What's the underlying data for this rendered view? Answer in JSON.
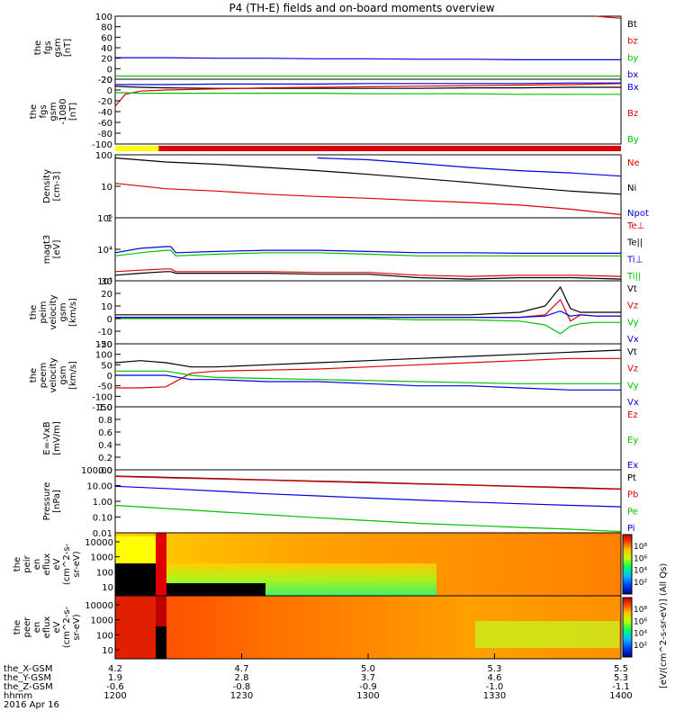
{
  "title": "P4 (TH-E) fields and on-board moments overview",
  "date_label": "2016 Apr 16",
  "colorbar_label": "[eV/(cm^2-s-sr-eV)] (All Qs)",
  "colors": {
    "black": "#000000",
    "red": "#e00000",
    "green": "#00c000",
    "blue": "#0000e0",
    "yellow": "#ffff00"
  },
  "chart_data": [
    {
      "id": "fgs-gsm",
      "type": "line",
      "ylabel": [
        "the",
        "fgs",
        "gsm",
        "[nT]"
      ],
      "ylim": [
        -20,
        100
      ],
      "yticks": [
        "100",
        "80",
        "60",
        "40",
        "20",
        "0",
        "-20"
      ],
      "legend": [
        {
          "text": "Bt",
          "color": "black"
        },
        {
          "text": "bz",
          "color": "red"
        },
        {
          "text": "by",
          "color": "green"
        },
        {
          "text": "bx",
          "color": "blue"
        }
      ],
      "x": [
        0,
        0.1,
        0.2,
        0.3,
        0.4,
        0.5,
        0.6,
        0.7,
        0.8,
        0.9,
        0.95,
        1.0
      ],
      "series": [
        {
          "color": "blue",
          "values": [
            21,
            21,
            20,
            20,
            19,
            19,
            18,
            18,
            17,
            17,
            17,
            17
          ]
        },
        {
          "color": "green",
          "values": [
            -14,
            -14,
            -14,
            -14,
            -14,
            -14,
            -14,
            -14,
            -14,
            -14,
            -14,
            -14
          ]
        },
        {
          "color": "red",
          "values": [
            null,
            null,
            null,
            null,
            null,
            null,
            null,
            null,
            null,
            null,
            100,
            96
          ]
        }
      ]
    },
    {
      "id": "fgs-gsm-1080",
      "type": "line",
      "ylabel": [
        "the",
        "fgs",
        "gsm",
        "-1080",
        "[nT]"
      ],
      "ylim": [
        -100,
        20
      ],
      "yticks": [
        "20",
        "0",
        "-20",
        "-40",
        "-60",
        "-80",
        "-100"
      ],
      "legend": [
        {
          "text": "Bx",
          "color": "blue"
        },
        {
          "text": "Bz",
          "color": "red"
        },
        {
          "text": "By",
          "color": "green"
        }
      ],
      "x": [
        0,
        0.02,
        0.05,
        0.1,
        0.2,
        0.3,
        0.4,
        0.5,
        0.6,
        0.7,
        0.8,
        0.9,
        1.0
      ],
      "series": [
        {
          "color": "black",
          "values": [
            7,
            6,
            5,
            4,
            3,
            3,
            3,
            3,
            3,
            4,
            4,
            5,
            5
          ]
        },
        {
          "color": "red",
          "values": [
            -30,
            -8,
            -2,
            0,
            2,
            4,
            5,
            6,
            7,
            8,
            9,
            10,
            12
          ]
        },
        {
          "color": "green",
          "values": [
            -5,
            -5,
            -6,
            -6,
            -6,
            -6,
            -6,
            -7,
            -7,
            -7,
            -8,
            -8,
            -8
          ]
        },
        {
          "color": "blue",
          "values": [
            10,
            10,
            10,
            10,
            11,
            11,
            11,
            12,
            12,
            12,
            12,
            13,
            13
          ]
        }
      ]
    },
    {
      "id": "density",
      "type": "line",
      "log": true,
      "ylabel": [
        "Density",
        "[cm-3]"
      ],
      "ylim": [
        0.1,
        300
      ],
      "yticks": [
        "100",
        "10",
        "1"
      ],
      "legend": [
        {
          "text": "Ne",
          "color": "red"
        },
        {
          "text": "Ni",
          "color": "black"
        },
        {
          "text": "Npot",
          "color": "blue"
        }
      ],
      "x": [
        0,
        0.1,
        0.2,
        0.3,
        0.4,
        0.5,
        0.6,
        0.7,
        0.8,
        0.9,
        1.0
      ],
      "series": [
        {
          "color": "black",
          "values": [
            200,
            120,
            90,
            60,
            40,
            25,
            15,
            9,
            5,
            3,
            2
          ]
        },
        {
          "color": "red",
          "values": [
            8,
            4,
            3,
            2,
            1.5,
            1.2,
            0.9,
            0.7,
            0.5,
            0.3,
            0.15
          ]
        },
        {
          "color": "blue",
          "values": [
            null,
            null,
            null,
            null,
            200,
            160,
            100,
            60,
            40,
            30,
            20
          ]
        }
      ]
    },
    {
      "id": "temperature",
      "type": "line",
      "log": true,
      "ylabel": [
        "magt3",
        "[eV]"
      ],
      "ylim": [
        300,
        100000
      ],
      "yticks": [
        "10⁵",
        "10⁴",
        "10³"
      ],
      "legend": [
        {
          "text": "Te⊥",
          "color": "red"
        },
        {
          "text": "Te||",
          "color": "black"
        },
        {
          "text": "Ti⊥",
          "color": "blue"
        },
        {
          "text": "Ti||",
          "color": "green"
        }
      ],
      "x": [
        0,
        0.05,
        0.1,
        0.11,
        0.12,
        0.2,
        0.3,
        0.4,
        0.5,
        0.6,
        0.7,
        0.8,
        0.9,
        1.0
      ],
      "series": [
        {
          "color": "black",
          "values": [
            500,
            600,
            700,
            700,
            600,
            600,
            600,
            550,
            550,
            400,
            350,
            400,
            400,
            350
          ]
        },
        {
          "color": "red",
          "values": [
            700,
            800,
            900,
            900,
            700,
            700,
            700,
            650,
            650,
            500,
            450,
            500,
            500,
            450
          ]
        },
        {
          "color": "green",
          "values": [
            3000,
            4000,
            5000,
            5000,
            3000,
            3500,
            4000,
            4000,
            3500,
            3000,
            3000,
            3000,
            3000,
            3000
          ]
        },
        {
          "color": "blue",
          "values": [
            4000,
            6000,
            7000,
            7000,
            4000,
            4500,
            5000,
            5000,
            4500,
            4000,
            4000,
            3800,
            3800,
            3800
          ]
        }
      ]
    },
    {
      "id": "peim-velocity",
      "type": "line",
      "ylabel": [
        "the",
        "peim",
        "velocity",
        "gsm",
        "[km/s]"
      ],
      "ylim": [
        -20,
        30
      ],
      "yticks": [
        "30",
        "20",
        "10",
        "0",
        "-10",
        "-20"
      ],
      "legend": [
        {
          "text": "Vt",
          "color": "black"
        },
        {
          "text": "Vz",
          "color": "red"
        },
        {
          "text": "Vy",
          "color": "green"
        },
        {
          "text": "Vx",
          "color": "blue"
        }
      ],
      "x": [
        0,
        0.1,
        0.2,
        0.3,
        0.4,
        0.5,
        0.6,
        0.7,
        0.8,
        0.85,
        0.88,
        0.9,
        0.92,
        0.95,
        1.0
      ],
      "series": [
        {
          "color": "black",
          "values": [
            3,
            3,
            3,
            3,
            3,
            3,
            3,
            3,
            5,
            10,
            25,
            8,
            5,
            5,
            5
          ]
        },
        {
          "color": "red",
          "values": [
            1,
            1,
            1,
            1,
            1,
            1,
            1,
            1,
            1,
            3,
            15,
            -2,
            3,
            2,
            2
          ]
        },
        {
          "color": "green",
          "values": [
            0,
            0,
            0,
            0,
            0,
            0,
            -1,
            -1,
            -2,
            -5,
            -12,
            -6,
            -4,
            -3,
            -3
          ]
        },
        {
          "color": "blue",
          "values": [
            1,
            1,
            1,
            1,
            1,
            1,
            1,
            1,
            1,
            2,
            6,
            2,
            3,
            2,
            2
          ]
        }
      ]
    },
    {
      "id": "peem-velocity",
      "type": "line",
      "ylabel": [
        "the",
        "peem",
        "velocity",
        "gsm",
        "[km/s]"
      ],
      "ylim": [
        -150,
        150
      ],
      "yticks": [
        "150",
        "100",
        "50",
        "0",
        "-50",
        "-100",
        "-150"
      ],
      "legend": [
        {
          "text": "Vt",
          "color": "black"
        },
        {
          "text": "Vz",
          "color": "red"
        },
        {
          "text": "Vy",
          "color": "green"
        },
        {
          "text": "Vx",
          "color": "blue"
        }
      ],
      "x": [
        0,
        0.05,
        0.1,
        0.15,
        0.2,
        0.3,
        0.4,
        0.5,
        0.6,
        0.7,
        0.8,
        0.9,
        1.0
      ],
      "series": [
        {
          "color": "black",
          "values": [
            60,
            70,
            60,
            40,
            40,
            50,
            60,
            70,
            80,
            90,
            100,
            110,
            120
          ]
        },
        {
          "color": "red",
          "values": [
            -60,
            -60,
            -55,
            10,
            20,
            25,
            30,
            40,
            50,
            60,
            70,
            80,
            80
          ]
        },
        {
          "color": "green",
          "values": [
            20,
            20,
            20,
            0,
            -10,
            -15,
            -20,
            -25,
            -30,
            -35,
            -40,
            -40,
            -40
          ]
        },
        {
          "color": "blue",
          "values": [
            0,
            0,
            0,
            -20,
            -20,
            -30,
            -30,
            -40,
            -50,
            -50,
            -60,
            -70,
            -70
          ]
        }
      ]
    },
    {
      "id": "efield",
      "type": "line",
      "ylabel": [
        "E=-VxB",
        "[mV/m]"
      ],
      "ylim": [
        0,
        1
      ],
      "yticks": [
        "1.0",
        "0.8",
        "0.6",
        "0.4",
        "0.2",
        "0.0"
      ],
      "legend": [
        {
          "text": "Ez",
          "color": "red"
        },
        {
          "text": "Ey",
          "color": "green"
        },
        {
          "text": "Ex",
          "color": "blue"
        }
      ],
      "x": [],
      "series": []
    },
    {
      "id": "pressure",
      "type": "line",
      "log": true,
      "ylabel": [
        "Pressure",
        "[nPa]"
      ],
      "ylim": [
        0.01,
        100
      ],
      "yticks": [
        "100.00",
        "10.00",
        "1.00",
        "0.10",
        "0.01"
      ],
      "legend": [
        {
          "text": "Pt",
          "color": "black"
        },
        {
          "text": "Pb",
          "color": "red"
        },
        {
          "text": "Pe",
          "color": "green"
        },
        {
          "text": "Pi",
          "color": "blue"
        }
      ],
      "x": [
        0,
        0.1,
        0.2,
        0.3,
        0.4,
        0.5,
        0.6,
        0.7,
        0.8,
        0.9,
        1.0
      ],
      "series": [
        {
          "color": "black",
          "values": [
            40,
            33,
            28,
            23,
            19,
            16,
            13,
            11,
            9,
            7.5,
            6
          ]
        },
        {
          "color": "red",
          "values": [
            38,
            31,
            26,
            22,
            18,
            15,
            12.5,
            10.5,
            8.5,
            7,
            5.8
          ]
        },
        {
          "color": "blue",
          "values": [
            9,
            6.5,
            4.5,
            3,
            2.2,
            1.6,
            1.2,
            0.9,
            0.7,
            0.55,
            0.45
          ]
        },
        {
          "color": "green",
          "values": [
            0.55,
            0.35,
            0.22,
            0.14,
            0.09,
            0.06,
            0.04,
            0.03,
            0.022,
            0.017,
            0.012
          ]
        }
      ]
    },
    {
      "id": "peir-eflux",
      "type": "heatmap",
      "ylabel": [
        "the",
        "peir",
        "en",
        "eflux",
        "eV",
        "(cm^2-s-",
        "sr-eV)"
      ],
      "yticks": [
        "10000",
        "1000",
        "100",
        "10"
      ],
      "colorbar_ticks": [
        "10⁸",
        "10⁶",
        "10⁴",
        "10²"
      ]
    },
    {
      "id": "peer-eflux",
      "type": "heatmap",
      "ylabel": [
        "the",
        "peer",
        "en",
        "eflux",
        "eV",
        "(cm^2-s-",
        "sr-eV)"
      ],
      "yticks": [
        "10000",
        "1000",
        "100",
        "10"
      ],
      "colorbar_ticks": [
        "10⁸",
        "10⁶",
        "10⁴",
        "10²"
      ]
    }
  ],
  "xaxis": {
    "row_labels": [
      "the_X-GSM",
      "the_Y-GSM",
      "the_Z-GSM",
      "hhmm"
    ],
    "ticks": [
      {
        "pos": 0.0,
        "values": [
          "4.2",
          "1.9",
          "-0.6",
          "1200"
        ]
      },
      {
        "pos": 0.25,
        "values": [
          "4.7",
          "2.8",
          "-0.8",
          "1230"
        ]
      },
      {
        "pos": 0.5,
        "values": [
          "5.0",
          "3.7",
          "-0.9",
          "1300"
        ]
      },
      {
        "pos": 0.75,
        "values": [
          "5.3",
          "4.6",
          "-1.0",
          "1330"
        ]
      },
      {
        "pos": 1.0,
        "values": [
          "5.5",
          "5.3",
          "-1.1",
          "1400"
        ]
      }
    ]
  },
  "mode_bar": [
    {
      "from": 0.0,
      "to": 0.086,
      "color": "yellow"
    },
    {
      "from": 0.086,
      "to": 1.0,
      "color": "red"
    }
  ]
}
